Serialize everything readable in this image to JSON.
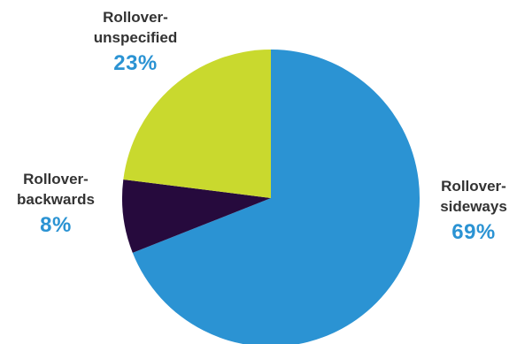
{
  "chart_data": {
    "type": "pie",
    "slices": [
      {
        "label_line1": "Rollover-",
        "label_line2": "sideways",
        "value": 69,
        "value_label": "69%",
        "color": "#2b93d3"
      },
      {
        "label_line1": "Rollover-",
        "label_line2": "backwards",
        "value": 8,
        "value_label": "8%",
        "color": "#260a3d"
      },
      {
        "label_line1": "Rollover-",
        "label_line2": "unspecified",
        "value": 23,
        "value_label": "23%",
        "color": "#c9d92e"
      }
    ],
    "start": "top, clockwise"
  }
}
